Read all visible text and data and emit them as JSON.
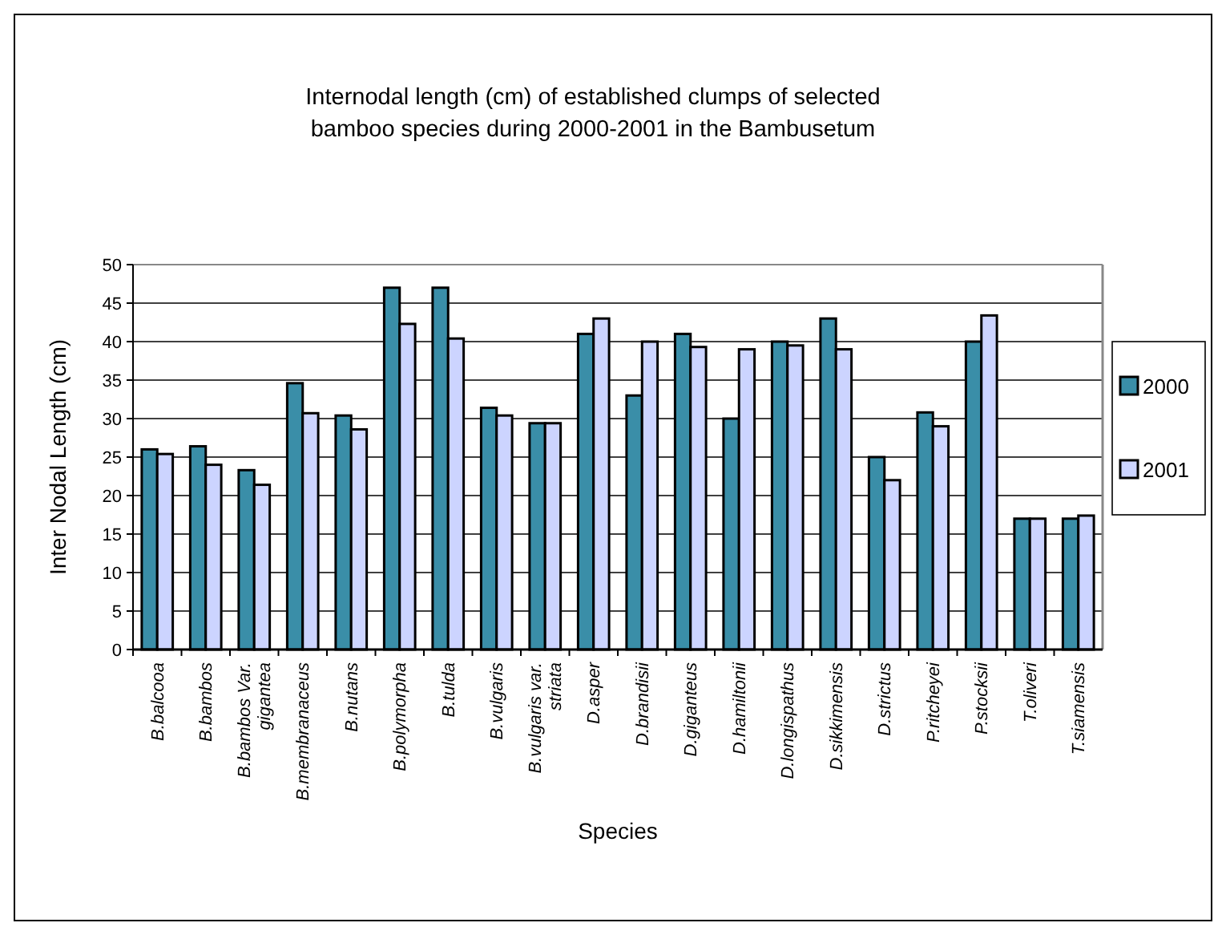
{
  "chart_data": {
    "type": "bar",
    "title": "Internodal length (cm) of established clumps of selected bamboo species  during 2000-2001 in the Bambusetum",
    "xlabel": "Species",
    "ylabel": "Inter Nodal Length (cm)",
    "categories": [
      "B.balcooa",
      "B.bambos",
      "B.bambos Var. gigantea",
      "B.membranaceus",
      "B.nutans",
      "B.polymorpha",
      "B.tulda",
      "B.vulgaris",
      "B.vulgaris var. striata",
      "D.asper",
      "D.brandisii",
      "D.giganteus",
      "D.hamiltonii",
      "D.longispathus",
      "D.sikkimensis",
      "D.strictus",
      "P.ritcheyei",
      "P.stocksii",
      "T.oliveri",
      "T.siamensis"
    ],
    "series": [
      {
        "name": "2000",
        "color": "#3a8ea8",
        "values": [
          26,
          26.4,
          23.3,
          34.6,
          30.4,
          47,
          47,
          31.4,
          29.4,
          41,
          33,
          41,
          30,
          40,
          43,
          25,
          30.8,
          40,
          17,
          17
        ]
      },
      {
        "name": "2001",
        "color": "#ccd4ff",
        "values": [
          25.4,
          24,
          21.4,
          30.7,
          28.6,
          42.3,
          40.4,
          30.4,
          29.4,
          43,
          40,
          39.3,
          39,
          39.5,
          39,
          22,
          29,
          43.4,
          17,
          17.4
        ]
      }
    ],
    "ylim": [
      0,
      50
    ],
    "yticks": [
      0,
      5,
      10,
      15,
      20,
      25,
      30,
      35,
      40,
      45,
      50
    ],
    "grid": "y",
    "legend": "right"
  }
}
